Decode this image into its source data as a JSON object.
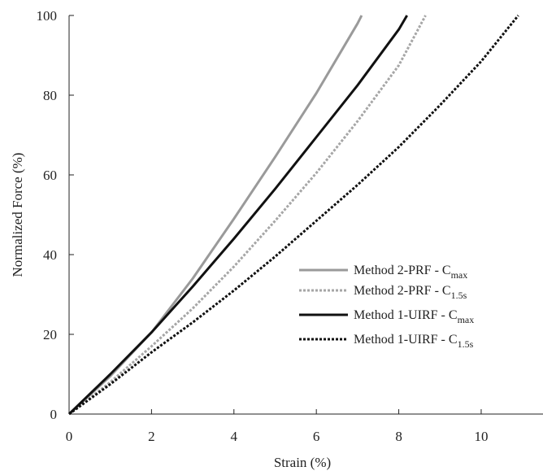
{
  "chart_data": {
    "type": "line",
    "title": "",
    "xlabel": "Strain (%)",
    "ylabel": "Normalized Force (%)",
    "xlim": [
      0,
      11.5
    ],
    "ylim": [
      0,
      100
    ],
    "xticks": [
      0,
      2,
      4,
      6,
      8,
      10
    ],
    "yticks": [
      0,
      20,
      40,
      60,
      80,
      100
    ],
    "grid": false,
    "legend_position": "right",
    "series": [
      {
        "name": "Method 2-PRF - Cmax",
        "label_main": "Method 2-PRF  - C",
        "label_sub": "max",
        "color": "#9a9a9a",
        "dash": "solid",
        "x": [
          0,
          1,
          2,
          3,
          4,
          5,
          6,
          7,
          7.1
        ],
        "y": [
          0,
          9.5,
          20.5,
          34,
          49,
          64.5,
          80.5,
          98,
          100
        ]
      },
      {
        "name": "Method 2-PRF - C1.5s",
        "label_main": "Method 2-PRF  - C",
        "label_sub": "1.5s",
        "color": "#a6a6a6",
        "dash": "dotted",
        "x": [
          0,
          1,
          2,
          3,
          4,
          5,
          6,
          7,
          8,
          8.65
        ],
        "y": [
          0,
          8,
          17,
          26.5,
          37,
          48.5,
          60.5,
          73.5,
          87.5,
          100
        ]
      },
      {
        "name": "Method 1-UIRF - Cmax",
        "label_main": "Method 1-UIRF  - C",
        "label_sub": "max",
        "color": "#111111",
        "dash": "solid",
        "x": [
          0,
          1,
          2,
          3,
          4,
          5,
          6,
          7,
          8,
          8.2
        ],
        "y": [
          0,
          10,
          20.5,
          32,
          44,
          56.5,
          69.5,
          82.5,
          96.5,
          100
        ]
      },
      {
        "name": "Method 1-UIRF - C1.5s",
        "label_main": "Method 1-UIRF - C",
        "label_sub": "1.5s",
        "color": "#111111",
        "dash": "dotted",
        "x": [
          0,
          1,
          2,
          3,
          4,
          5,
          6,
          7,
          8,
          9,
          10,
          10.9
        ],
        "y": [
          0,
          7.5,
          15.5,
          23,
          31,
          39.5,
          48.5,
          57.5,
          67,
          77.5,
          88.5,
          100
        ]
      }
    ]
  }
}
